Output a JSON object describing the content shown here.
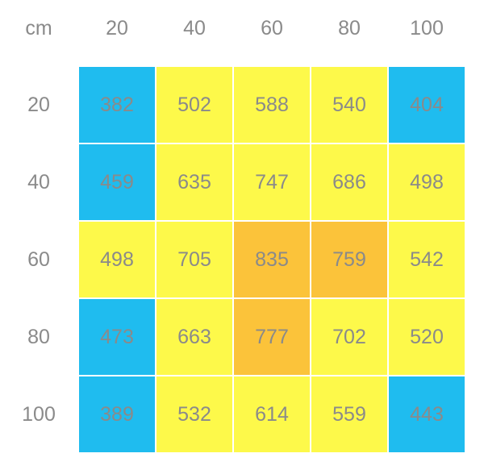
{
  "chart_data": {
    "type": "heatmap",
    "corner_label": "cm",
    "x_labels": [
      "20",
      "40",
      "60",
      "80",
      "100"
    ],
    "y_labels": [
      "20",
      "40",
      "60",
      "80",
      "100"
    ],
    "values": [
      [
        382,
        502,
        588,
        540,
        404
      ],
      [
        459,
        635,
        747,
        686,
        498
      ],
      [
        498,
        705,
        835,
        759,
        542
      ],
      [
        473,
        663,
        777,
        702,
        520
      ],
      [
        389,
        532,
        614,
        559,
        443
      ]
    ],
    "cell_colors": [
      [
        "blue",
        "yellow",
        "yellow",
        "yellow",
        "blue"
      ],
      [
        "blue",
        "yellow",
        "yellow",
        "yellow",
        "yellow"
      ],
      [
        "yellow",
        "yellow",
        "orange",
        "orange",
        "yellow"
      ],
      [
        "blue",
        "yellow",
        "orange",
        "yellow",
        "yellow"
      ],
      [
        "blue",
        "yellow",
        "yellow",
        "yellow",
        "blue"
      ]
    ],
    "palette": {
      "blue": "#1fbcef",
      "yellow": "#fdf94a",
      "orange": "#fbc33a"
    },
    "text_color": "#8a8a8a"
  }
}
